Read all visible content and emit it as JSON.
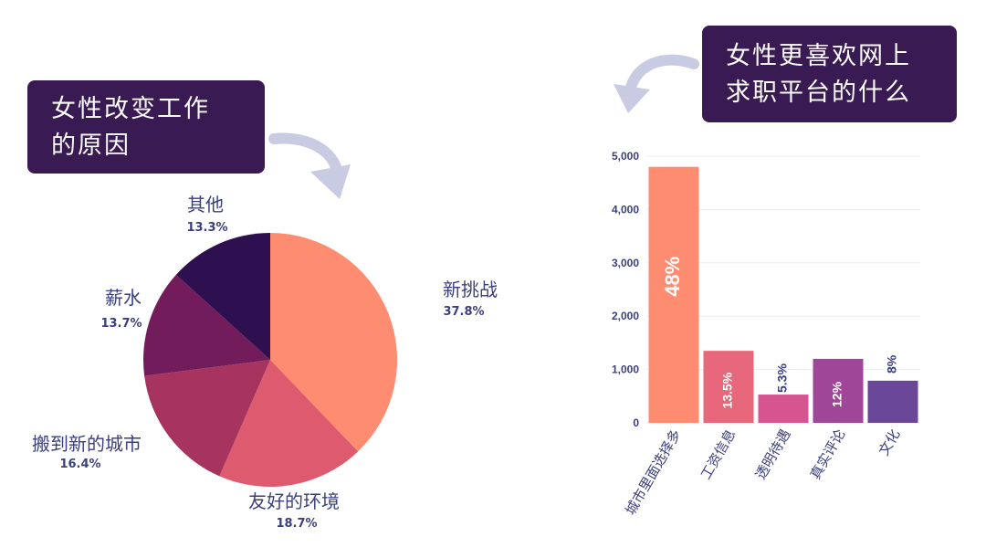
{
  "callouts": {
    "left": [
      "女性改变工作",
      "的原因"
    ],
    "right": [
      "女性更喜欢网上",
      "求职平台的什么"
    ]
  },
  "chart_data": [
    {
      "type": "pie",
      "title": "女性改变工作的原因",
      "slices": [
        {
          "label": "新挑战",
          "value": 37.8,
          "value_label": "37.8%",
          "color": "#fe8c71"
        },
        {
          "label": "友好的环境",
          "value": 18.7,
          "value_label": "18.7%",
          "color": "#de5a6e"
        },
        {
          "label": "搬到新的城市",
          "value": 16.4,
          "value_label": "16.4%",
          "color": "#a7345f"
        },
        {
          "label": "薪水",
          "value": 13.7,
          "value_label": "13.7%",
          "color": "#731c5c"
        },
        {
          "label": "其他",
          "value": 13.3,
          "value_label": "13.3%",
          "color": "#2e0f4f"
        }
      ]
    },
    {
      "type": "bar",
      "title": "女性更喜欢网上求职平台的什么",
      "categories": [
        "城市里面选择多",
        "工资信息",
        "透明待遇",
        "真实评论",
        "文化"
      ],
      "values": [
        4800,
        1350,
        530,
        1200,
        790
      ],
      "value_labels": [
        "48%",
        "13.5%",
        "5.3%",
        "12%",
        "8%"
      ],
      "colors": [
        "#fe8c71",
        "#e8687b",
        "#d6548f",
        "#a04698",
        "#6a4799"
      ],
      "yticks": [
        "0",
        "1,000",
        "2,000",
        "3,000",
        "4,000",
        "5,000"
      ],
      "ylim": [
        0,
        5000
      ],
      "grid": true
    }
  ]
}
